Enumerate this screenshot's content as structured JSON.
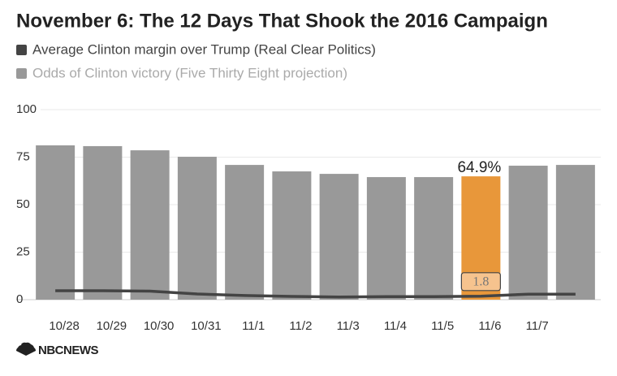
{
  "chart_data": {
    "type": "bar",
    "title": "November 6: The 12 Days That Shook the 2016 Campaign",
    "categories": [
      "10/28",
      "10/29",
      "10/30",
      "10/31",
      "11/1",
      "11/2",
      "11/3",
      "11/4",
      "11/5",
      "11/6",
      "11/7",
      null
    ],
    "series": [
      {
        "name": "Average Clinton margin over Trump (Real Clear Politics)",
        "type": "line",
        "color": "#444444",
        "values": [
          4.7,
          4.7,
          4.5,
          3.0,
          2.2,
          1.7,
          1.4,
          1.6,
          1.6,
          1.8,
          2.9,
          2.9
        ]
      },
      {
        "name": "Odds of Clinton victory (Five Thirty Eight projection)",
        "type": "bar",
        "color": "#999999",
        "colors": [
          "#999999",
          "#999999",
          "#999999",
          "#999999",
          "#999999",
          "#999999",
          "#999999",
          "#999999",
          "#999999",
          "#e8973a",
          "#999999",
          "#999999"
        ],
        "values": [
          81.2,
          80.8,
          78.6,
          75.2,
          70.9,
          67.5,
          66.2,
          64.5,
          64.5,
          64.9,
          70.5,
          70.9
        ],
        "value_labels": [
          null,
          null,
          null,
          null,
          null,
          null,
          null,
          null,
          null,
          "64.9%",
          null,
          null
        ]
      }
    ],
    "line_label_index": 9,
    "ylim": [
      0,
      100
    ],
    "yticks": [
      0,
      25,
      50,
      75,
      100
    ],
    "grid": true,
    "source": "NBCNEWS"
  }
}
